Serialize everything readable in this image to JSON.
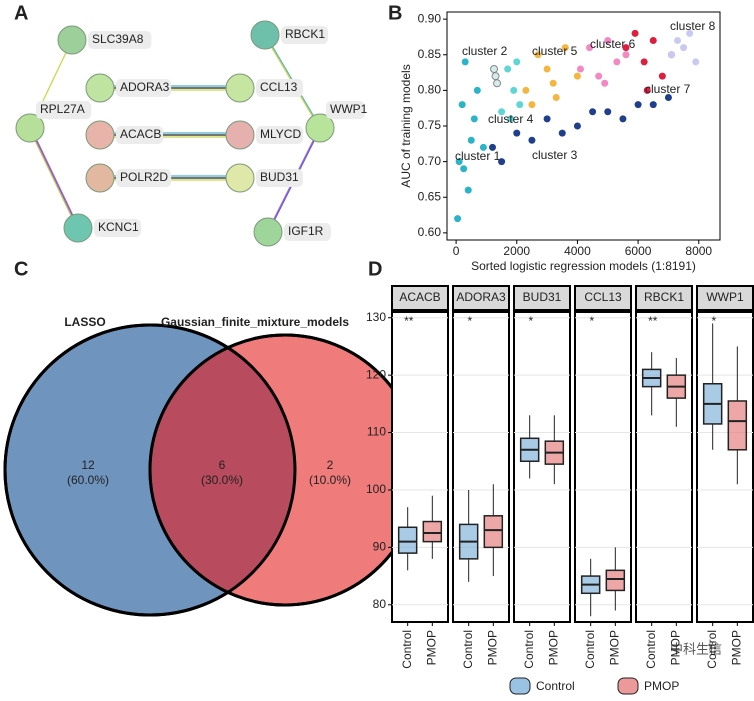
{
  "panels": [
    "A",
    "B",
    "C",
    "D"
  ],
  "network": {
    "nodes": [
      {
        "label": "SLC39A8"
      },
      {
        "label": "RPL27A"
      },
      {
        "label": "KCNC1"
      },
      {
        "label": "ADORA3"
      },
      {
        "label": "ACACB"
      },
      {
        "label": "POLR2D"
      },
      {
        "label": "CCL13"
      },
      {
        "label": "MLYCD"
      },
      {
        "label": "BUD31"
      },
      {
        "label": "RBCK1"
      },
      {
        "label": "WWP1"
      },
      {
        "label": "IGF1R"
      }
    ]
  },
  "watermark": "中科生信",
  "chart_data": [
    {
      "type": "scatter",
      "xlabel": "Sorted logistic regression models (1:8191)",
      "ylabel": "AUC of training models",
      "xlim": [
        -300,
        8700
      ],
      "xticks": [
        0,
        2000,
        4000,
        6000,
        8000
      ],
      "ylim": [
        0.59,
        0.91
      ],
      "yticks": [
        {
          "value": 0.6,
          "label": "0.60"
        },
        {
          "value": 0.65,
          "label": "0.65"
        },
        {
          "value": 0.7,
          "label": "0.70"
        },
        {
          "value": 0.75,
          "label": "0.75"
        },
        {
          "value": 0.8,
          "label": "0.80"
        },
        {
          "value": 0.85,
          "label": "0.85"
        },
        {
          "value": 0.9,
          "label": "0.90"
        }
      ],
      "series": [
        {
          "name": "cluster 1",
          "color": "#2bb3c8",
          "x": [
            50,
            100,
            200,
            300,
            400,
            500,
            700,
            900,
            600,
            250
          ],
          "y": [
            0.62,
            0.7,
            0.78,
            0.84,
            0.66,
            0.73,
            0.8,
            0.72,
            0.76,
            0.69
          ]
        },
        {
          "name": "cluster 2",
          "color": "#d5ecee",
          "x": [
            1250,
            1300,
            1350
          ],
          "y": [
            0.83,
            0.82,
            0.81
          ]
        },
        {
          "name": "cluster 3",
          "color": "#1f3f8c",
          "x": [
            1200,
            1500,
            2000,
            2500,
            3000,
            3500,
            4000,
            4500,
            5000,
            5500,
            6000,
            6500,
            7000
          ],
          "y": [
            0.72,
            0.7,
            0.74,
            0.73,
            0.76,
            0.74,
            0.75,
            0.77,
            0.77,
            0.76,
            0.78,
            0.78,
            0.79
          ]
        },
        {
          "name": "cluster 4",
          "color": "#5fd6d6",
          "x": [
            1500,
            1700,
            1900,
            2100,
            1800,
            2000
          ],
          "y": [
            0.77,
            0.83,
            0.8,
            0.78,
            0.76,
            0.84
          ]
        },
        {
          "name": "cluster 5",
          "color": "#f4b640",
          "x": [
            2300,
            2700,
            3000,
            3300,
            3600,
            4000,
            3200,
            2500
          ],
          "y": [
            0.8,
            0.85,
            0.83,
            0.79,
            0.86,
            0.82,
            0.81,
            0.78
          ]
        },
        {
          "name": "cluster 6",
          "color": "#f389c2",
          "x": [
            4100,
            4400,
            4700,
            5000,
            5300,
            5600,
            4900
          ],
          "y": [
            0.83,
            0.86,
            0.82,
            0.87,
            0.84,
            0.85,
            0.81
          ]
        },
        {
          "name": "cluster 7",
          "color": "#dc1f3e",
          "x": [
            5600,
            5900,
            6200,
            6500,
            6800,
            7100,
            6300
          ],
          "y": [
            0.86,
            0.88,
            0.84,
            0.87,
            0.82,
            0.85,
            0.8
          ]
        },
        {
          "name": "cluster 8",
          "color": "#c9caf1",
          "x": [
            7100,
            7300,
            7500,
            7700,
            7900
          ],
          "y": [
            0.85,
            0.87,
            0.86,
            0.88,
            0.84
          ]
        }
      ]
    },
    {
      "type": "venn",
      "sets": [
        "LASSO",
        "Gaussian_finite_mixture_models"
      ],
      "colors": [
        "#6f95bf",
        "#f07b7b"
      ],
      "overlap_color": "#b84b5e",
      "values": [
        12,
        6,
        2
      ],
      "percents": [
        60.0,
        30.0,
        10.0
      ],
      "percent_labels": [
        "(60.0%)",
        "(30.0%)",
        "(10.0%)"
      ]
    },
    {
      "type": "box",
      "groups": [
        "Control",
        "PMOP"
      ],
      "colors": [
        "#6fa8d6",
        "#e36d6d"
      ],
      "ylim": [
        77,
        131
      ],
      "yticks": [
        80,
        90,
        100,
        110,
        120,
        130
      ],
      "facets": [
        {
          "name": "ACACB",
          "significance": "**",
          "boxes": [
            {
              "min": 86,
              "q1": 89,
              "median": 91,
              "q3": 93.5,
              "max": 97
            },
            {
              "min": 88,
              "q1": 91,
              "median": 92.5,
              "q3": 94.5,
              "max": 99
            }
          ]
        },
        {
          "name": "ADORA3",
          "significance": "*",
          "boxes": [
            {
              "min": 84,
              "q1": 88,
              "median": 91,
              "q3": 94,
              "max": 100
            },
            {
              "min": 85,
              "q1": 90,
              "median": 93,
              "q3": 95.5,
              "max": 101
            }
          ]
        },
        {
          "name": "BUD31",
          "significance": "*",
          "boxes": [
            {
              "min": 102,
              "q1": 105,
              "median": 107,
              "q3": 109,
              "max": 113
            },
            {
              "min": 101,
              "q1": 104.5,
              "median": 106.5,
              "q3": 108.5,
              "max": 113
            }
          ]
        },
        {
          "name": "CCL13",
          "significance": "*",
          "boxes": [
            {
              "min": 78,
              "q1": 82,
              "median": 83.5,
              "q3": 85,
              "max": 88
            },
            {
              "min": 79,
              "q1": 82.5,
              "median": 84.5,
              "q3": 86,
              "max": 90
            }
          ]
        },
        {
          "name": "RBCK1",
          "significance": "**",
          "boxes": [
            {
              "min": 113,
              "q1": 118,
              "median": 119.5,
              "q3": 121,
              "max": 124
            },
            {
              "min": 111,
              "q1": 116,
              "median": 118,
              "q3": 120,
              "max": 123
            }
          ]
        },
        {
          "name": "WWP1",
          "significance": "*",
          "boxes": [
            {
              "min": 107,
              "q1": 111.5,
              "median": 115,
              "q3": 118.5,
              "max": 129
            },
            {
              "min": 101,
              "q1": 107,
              "median": 112,
              "q3": 115.5,
              "max": 125
            }
          ]
        }
      ]
    }
  ]
}
